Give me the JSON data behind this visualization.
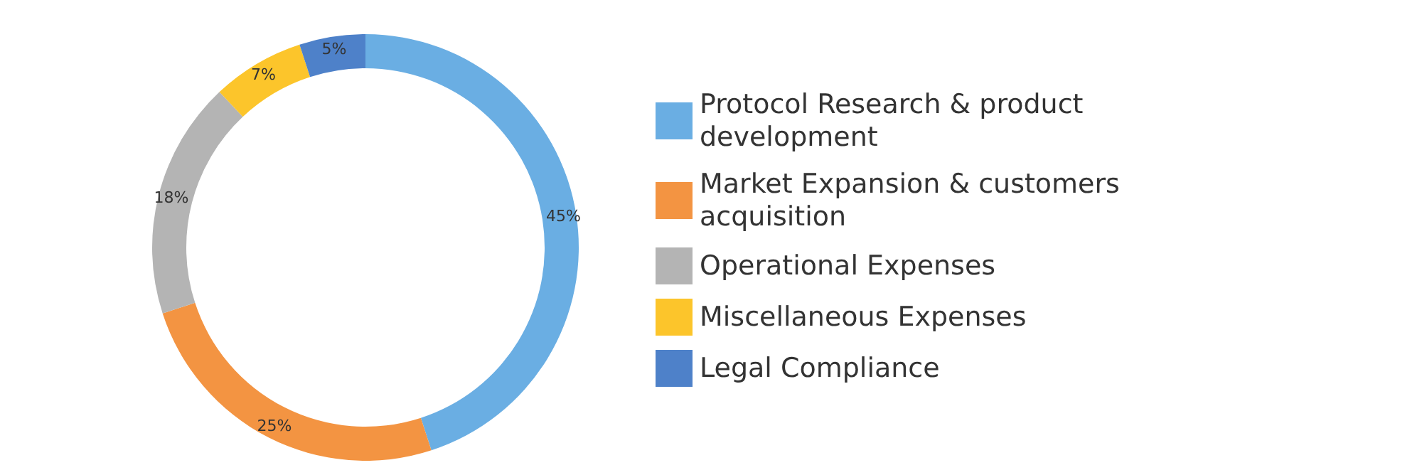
{
  "chart_data": {
    "type": "donut",
    "categories": [
      "Protocol Research & product development",
      "Market Expansion & customers acquisition",
      "Operational Expenses",
      "Miscellaneous Expenses",
      "Legal Compliance"
    ],
    "values": [
      45,
      25,
      18,
      7,
      5
    ],
    "colors": [
      "#6aaee3",
      "#f39442",
      "#b4b4b4",
      "#fcc52b",
      "#4e81c9"
    ],
    "value_labels": [
      "45%",
      "25%",
      "18%",
      "7%",
      "5%"
    ],
    "legend": "right"
  }
}
